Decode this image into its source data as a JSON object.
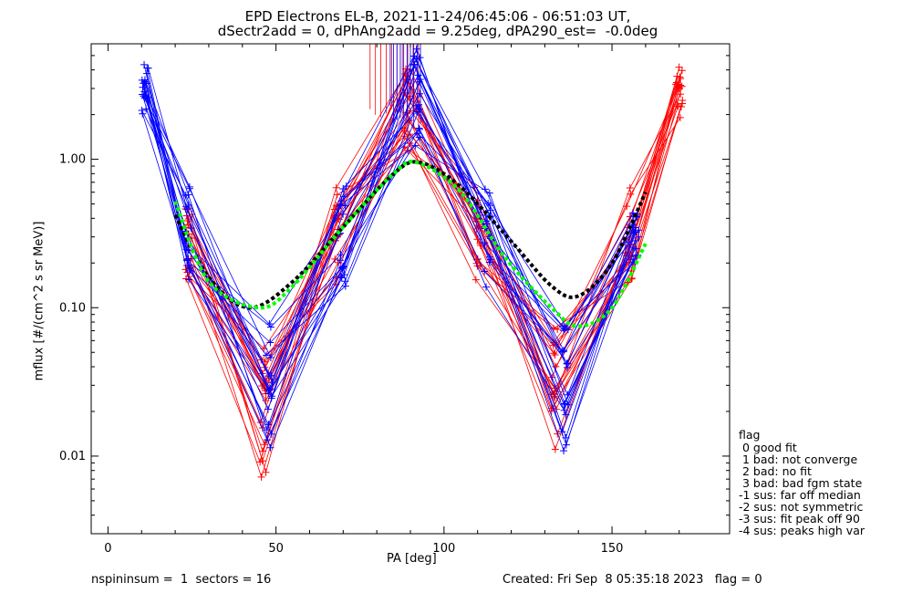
{
  "title_line1": "EPD Electrons EL-B, 2021-11-24/06:45:06 - 06:51:03 UT,",
  "title_line2": "dSectr2add = 0, dPhAng2add = 9.25deg, dPA290_est=  -0.0deg",
  "footer": {
    "left": "nspininsum =  1  sectors = 16",
    "right": "Created: Fri Sep  8 05:35:18 2023   flag = 0"
  },
  "flag_legend": {
    "heading": "flag",
    "items": [
      " 0 good fit",
      " 1 bad: not converge",
      " 2 bad: no fit",
      " 3 bad: bad fgm state",
      "-1 sus: far off median",
      "-2 sus: not symmetric",
      "-3 sus: fit peak off 90",
      "-4 sus: peaks high var"
    ]
  },
  "chart_data": {
    "type": "line",
    "xlabel": "PA [deg]",
    "ylabel": "mflux [#/(cm^2 s sr MeV)]",
    "xlim": [
      -5,
      185
    ],
    "ylim": [
      0.003,
      6
    ],
    "yscale": "log",
    "xticks": [
      0,
      50,
      100,
      150
    ],
    "yticks": [
      0.01,
      0.1,
      1.0
    ],
    "ytick_labels": [
      "0.01",
      "0.10",
      "1.00"
    ],
    "series_colors": {
      "red": "#ff0000",
      "blue": "#0000ff",
      "black_fit": "#000000",
      "green_fit": "#00ff00"
    },
    "red_spins": {
      "pa": [
        11,
        24,
        46,
        68,
        89,
        110,
        133,
        155,
        170
      ],
      "count": 20,
      "typical_values": [
        null,
        0.3,
        0.02,
        0.3,
        2.5,
        0.3,
        0.03,
        0.3,
        2.8
      ]
    },
    "blue_spins": {
      "pa": [
        11,
        24,
        48,
        70,
        92,
        113,
        136,
        157
      ],
      "count": 20,
      "typical_values": [
        3.0,
        0.3,
        0.03,
        0.3,
        2.5,
        0.3,
        0.03,
        0.3
      ]
    },
    "fit_black": {
      "x": [
        20,
        30,
        42,
        55,
        70,
        85,
        93,
        105,
        120,
        132,
        140,
        150,
        160
      ],
      "y": [
        0.42,
        0.16,
        0.1,
        0.15,
        0.35,
        0.8,
        0.95,
        0.65,
        0.28,
        0.14,
        0.12,
        0.2,
        0.6
      ]
    },
    "fit_green": {
      "x": [
        20,
        30,
        45,
        55,
        70,
        85,
        92,
        105,
        118,
        132,
        140,
        150,
        160
      ],
      "y": [
        0.52,
        0.15,
        0.1,
        0.14,
        0.35,
        0.8,
        0.95,
        0.6,
        0.22,
        0.1,
        0.075,
        0.1,
        0.27
      ]
    }
  }
}
